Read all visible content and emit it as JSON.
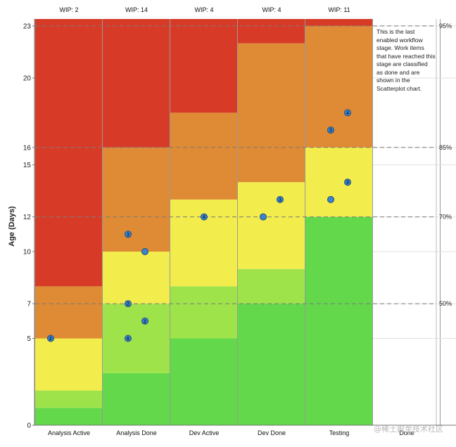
{
  "chart_data": {
    "type": "heatmap",
    "ylabel": "Age (Days)",
    "ylim": [
      0,
      23.4
    ],
    "y_ticks": [
      0,
      5,
      7,
      10,
      12,
      15,
      16,
      20,
      23
    ],
    "zone_colors": {
      "green": "#62d84a",
      "light_green": "#9fe34b",
      "yellow": "#f2ec4c",
      "orange": "#df8a35",
      "red": "#d73b28"
    },
    "columns": [
      {
        "name": "Analysis Active",
        "wip_label": "WIP: 2",
        "zones": [
          {
            "from": 0,
            "to": 1,
            "color": "green"
          },
          {
            "from": 1,
            "to": 2,
            "color": "light_green"
          },
          {
            "from": 2,
            "to": 5,
            "color": "yellow"
          },
          {
            "from": 5,
            "to": 8,
            "color": "orange"
          },
          {
            "from": 8,
            "to": 23.4,
            "color": "red"
          }
        ],
        "items": [
          {
            "age": 5,
            "label": "2"
          }
        ]
      },
      {
        "name": "Analysis Done",
        "wip_label": "WIP: 14",
        "zones": [
          {
            "from": 0,
            "to": 3,
            "color": "green"
          },
          {
            "from": 3,
            "to": 7,
            "color": "light_green"
          },
          {
            "from": 7,
            "to": 10,
            "color": "yellow"
          },
          {
            "from": 10,
            "to": 16,
            "color": "orange"
          },
          {
            "from": 16,
            "to": 23.4,
            "color": "red"
          }
        ],
        "items": [
          {
            "age": 5,
            "label": "6"
          },
          {
            "age": 6,
            "label": "2"
          },
          {
            "age": 7,
            "label": "2"
          },
          {
            "age": 10,
            "label": ""
          },
          {
            "age": 11,
            "label": "3"
          }
        ]
      },
      {
        "name": "Dev Active",
        "wip_label": "WIP: 4",
        "zones": [
          {
            "from": 0,
            "to": 5,
            "color": "green"
          },
          {
            "from": 5,
            "to": 8,
            "color": "light_green"
          },
          {
            "from": 8,
            "to": 13,
            "color": "yellow"
          },
          {
            "from": 13,
            "to": 18,
            "color": "orange"
          },
          {
            "from": 18,
            "to": 23.4,
            "color": "red"
          }
        ],
        "items": [
          {
            "age": 12,
            "label": "4"
          }
        ]
      },
      {
        "name": "Dev Done",
        "wip_label": "WIP: 4",
        "zones": [
          {
            "from": 0,
            "to": 7,
            "color": "green"
          },
          {
            "from": 7,
            "to": 9,
            "color": "light_green"
          },
          {
            "from": 9,
            "to": 14,
            "color": "yellow"
          },
          {
            "from": 14,
            "to": 22,
            "color": "orange"
          },
          {
            "from": 22,
            "to": 23.4,
            "color": "red"
          }
        ],
        "items": [
          {
            "age": 12,
            "label": ""
          },
          {
            "age": 13,
            "label": "3"
          }
        ]
      },
      {
        "name": "Testing",
        "wip_label": "WIP: 11",
        "zones": [
          {
            "from": 0,
            "to": 12,
            "color": "green"
          },
          {
            "from": 12,
            "to": 16,
            "color": "yellow"
          },
          {
            "from": 16,
            "to": 23,
            "color": "orange"
          },
          {
            "from": 23,
            "to": 23.4,
            "color": "red"
          }
        ],
        "items": [
          {
            "age": 13,
            "label": ""
          },
          {
            "age": 14,
            "label": "3"
          },
          {
            "age": 17,
            "label": "3"
          },
          {
            "age": 18,
            "label": "4"
          }
        ]
      },
      {
        "name": "Done",
        "wip_label": "",
        "zones": [],
        "items": []
      }
    ],
    "percentiles": [
      {
        "label": "50%",
        "age": 7
      },
      {
        "label": "70%",
        "age": 12
      },
      {
        "label": "85%",
        "age": 16
      },
      {
        "label": "95%",
        "age": 23
      }
    ],
    "annotation": "This is the last enabled workflow stage. Work items that have reached this stage are classified as done and are shown in the Scatterplot chart."
  },
  "watermark": "@稀土掘金技术社区"
}
